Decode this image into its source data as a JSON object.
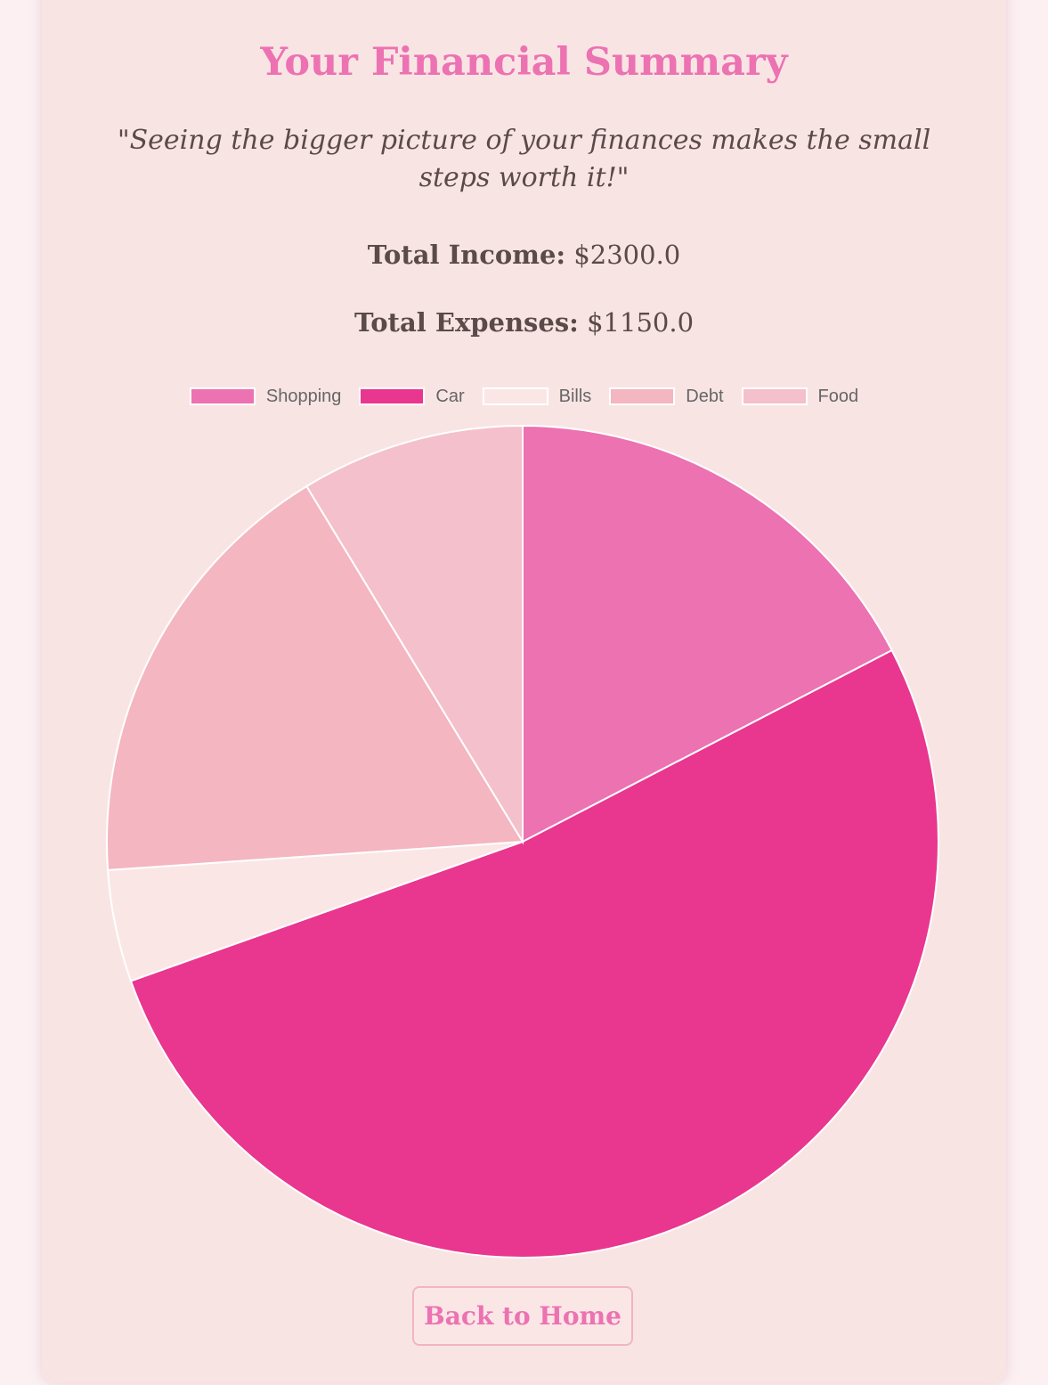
{
  "page": {
    "title": "Your Financial Summary",
    "quote": "\"Seeing the bigger picture of your finances makes the small steps worth it!\"",
    "income_label": "Total Income:",
    "income_value": "$2300.0",
    "expenses_label": "Total Expenses:",
    "expenses_value": "$1150.0",
    "back_button": "Back to Home"
  },
  "chart_data": {
    "type": "pie",
    "categories": [
      "Shopping",
      "Car",
      "Bills",
      "Debt",
      "Food"
    ],
    "values": [
      200,
      600,
      50,
      200,
      100
    ],
    "colors": [
      "#ec72b2",
      "#e9368f",
      "#fbe6e6",
      "#f4b6c0",
      "#f4c0cb"
    ],
    "slice_border_color": "#ffffff",
    "legend_position": "top"
  }
}
